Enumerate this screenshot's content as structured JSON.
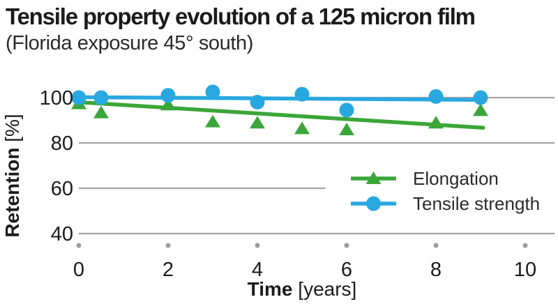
{
  "header": {
    "title": "Tensile property evolution of a 125 micron film",
    "subtitle": "(Florida exposure 45° south)"
  },
  "colors": {
    "elongation_green": "#3BA639",
    "tensile_blue": "#29A8E0",
    "gridline_gray": "#A5A5A5",
    "tick_dot_gray": "#9C9C9C",
    "text_dark": "#1B1B1B"
  },
  "chart_data": {
    "type": "scatter",
    "title": "Tensile property evolution of a 125 micron film",
    "subtitle": "(Florida exposure 45° south)",
    "xlabel": "Time [years]",
    "ylabel": "Retention [%]",
    "xlabel_parts": {
      "bold": "Time",
      "unit": " [years]"
    },
    "ylabel_parts": {
      "bold": "Retention",
      "unit": " [%]"
    },
    "xlim": [
      0,
      10.66
    ],
    "ylim": [
      37,
      105
    ],
    "x_ticks": [
      0,
      2,
      4,
      6,
      8,
      10
    ],
    "y_ticks": [
      100,
      80,
      60,
      40
    ],
    "grid": "horizontal-only",
    "gridlines": [
      {
        "value": 100,
        "x_start": 0,
        "x_end": 10.66
      },
      {
        "value": 80,
        "x_start": 0,
        "x_end": 10.66
      },
      {
        "value": 60,
        "x_start": 0,
        "x_end": 5.52
      },
      {
        "value": 40,
        "x_start": 0,
        "x_end": 10.66
      }
    ],
    "legend_position": "middle-right",
    "series": [
      {
        "name": "Elongation",
        "marker": "triangle",
        "color": "#3BA639",
        "x": [
          0,
          0.5,
          2,
          3,
          4,
          5,
          6,
          8,
          9
        ],
        "y": [
          97.5,
          93.5,
          97,
          89.5,
          89,
          86.5,
          86,
          89,
          94.5
        ],
        "trend": {
          "x1": 0,
          "y1": 98,
          "x2": 9.06,
          "y2": 86.7
        }
      },
      {
        "name": "Tensile strength",
        "marker": "circle",
        "color": "#29A8E0",
        "x": [
          0,
          0.5,
          2,
          3,
          4,
          5,
          6,
          8,
          9
        ],
        "y": [
          100,
          100,
          101,
          102.5,
          98,
          101.5,
          94.5,
          100.5,
          100
        ],
        "trend": {
          "x1": 0,
          "y1": 100.2,
          "x2": 9.06,
          "y2": 99
        }
      }
    ]
  }
}
